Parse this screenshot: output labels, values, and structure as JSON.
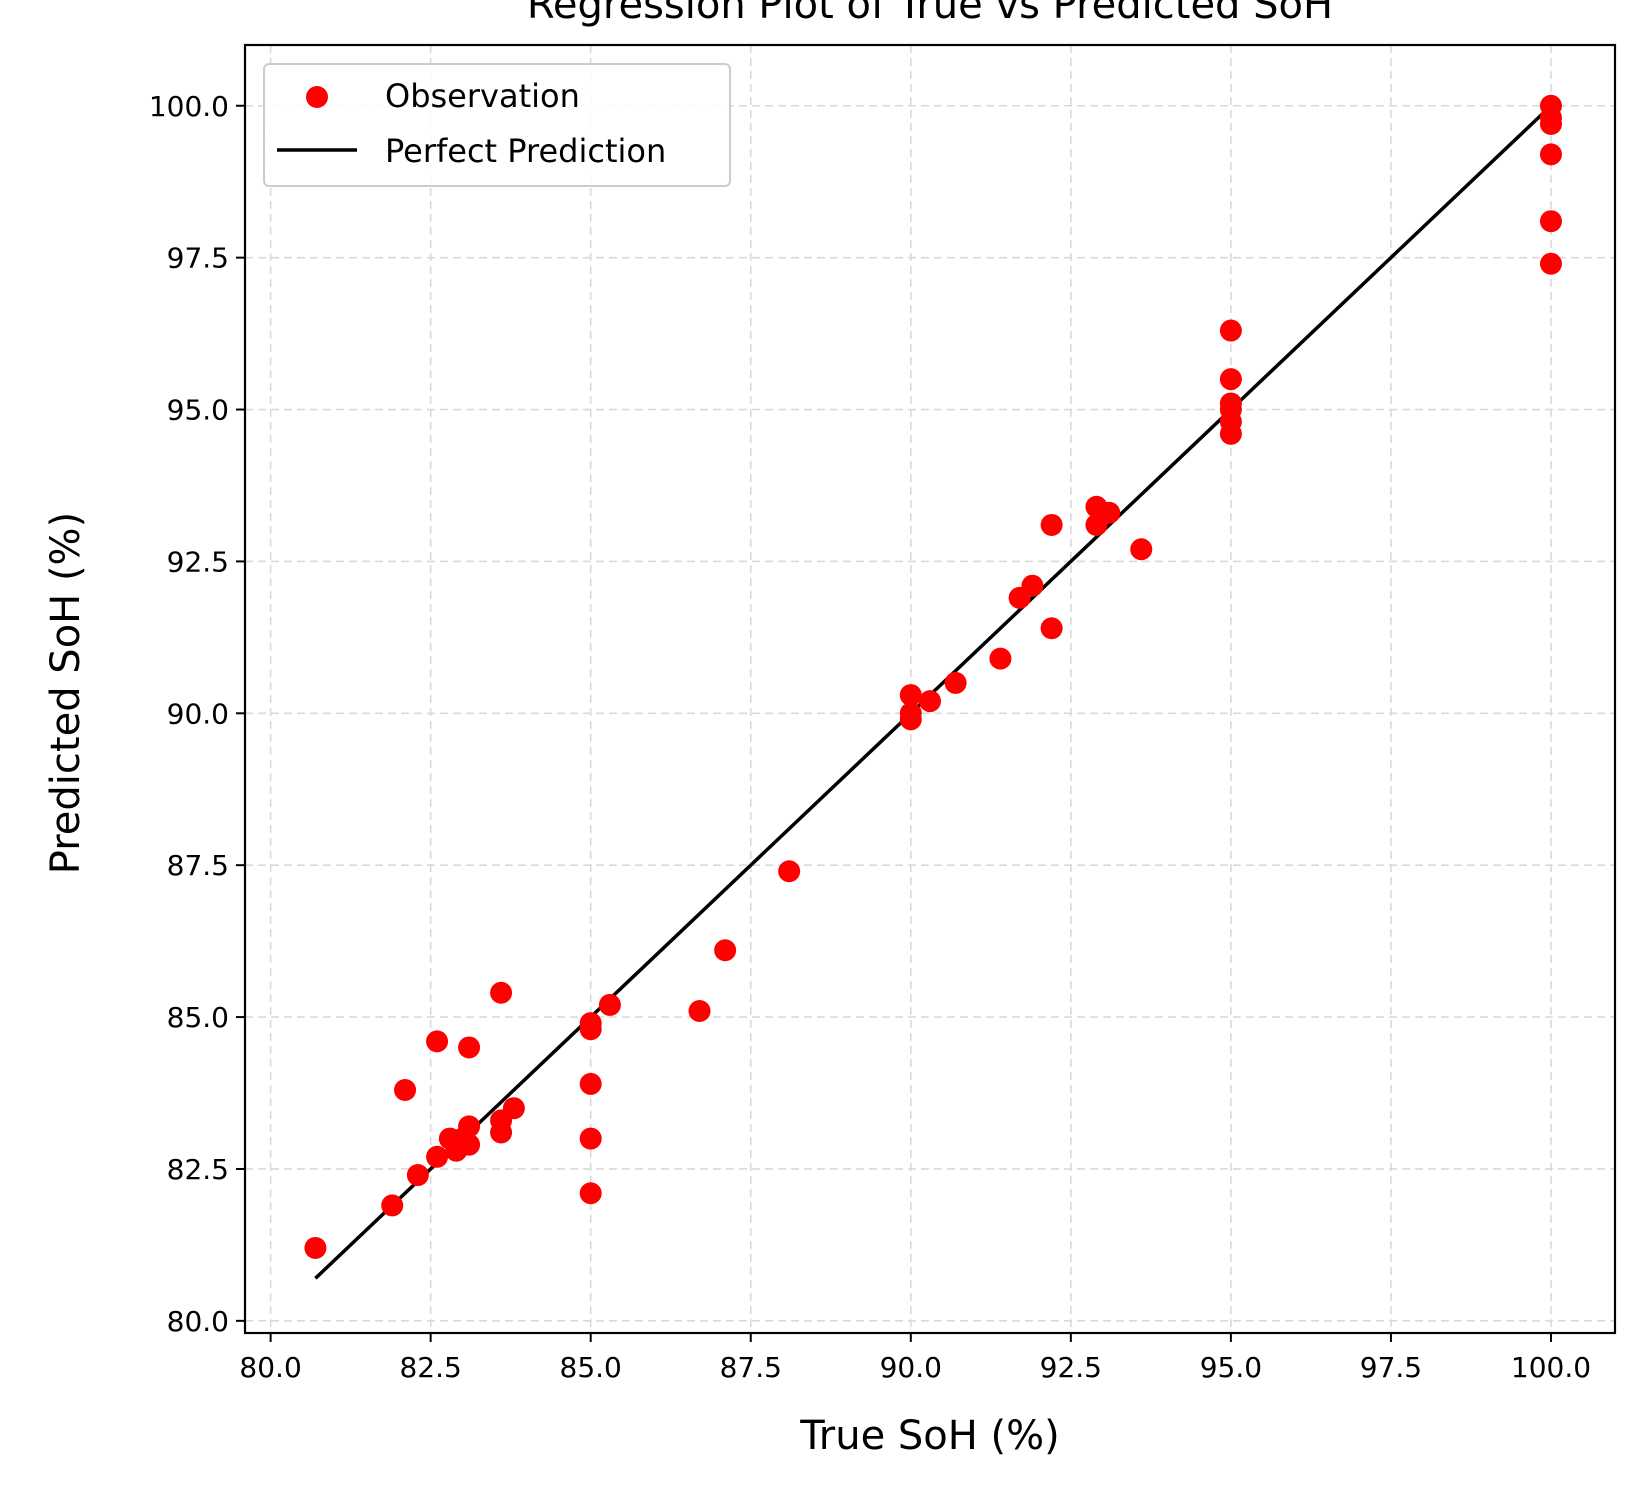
{
  "chart_data": {
    "type": "scatter",
    "title": "Regression Plot of True vs Predicted SoH",
    "xlabel": "True SoH (%)",
    "ylabel": "Predicted SoH (%)",
    "xlim": [
      79.6,
      101.0
    ],
    "ylim": [
      79.8,
      101.0
    ],
    "x_ticks": [
      "80.0",
      "82.5",
      "85.0",
      "87.5",
      "90.0",
      "92.5",
      "95.0",
      "97.5",
      "100.0"
    ],
    "y_ticks": [
      "80.0",
      "82.5",
      "85.0",
      "87.5",
      "90.0",
      "92.5",
      "95.0",
      "97.5",
      "100.0"
    ],
    "grid": true,
    "legend_position": "top-left",
    "colors": {
      "observation": "#ff0000",
      "perfect": "#000000"
    },
    "series": [
      {
        "name": "Observation",
        "marker": "circle",
        "points": [
          [
            80.7,
            81.2
          ],
          [
            81.9,
            81.9
          ],
          [
            82.1,
            83.8
          ],
          [
            82.3,
            82.4
          ],
          [
            82.6,
            82.7
          ],
          [
            82.6,
            84.6
          ],
          [
            82.8,
            83.0
          ],
          [
            82.9,
            82.8
          ],
          [
            83.0,
            83.0
          ],
          [
            83.1,
            84.5
          ],
          [
            83.1,
            82.9
          ],
          [
            83.1,
            83.2
          ],
          [
            83.6,
            83.3
          ],
          [
            83.6,
            83.1
          ],
          [
            83.6,
            85.4
          ],
          [
            83.8,
            83.5
          ],
          [
            85.0,
            84.9
          ],
          [
            85.0,
            84.8
          ],
          [
            85.0,
            83.9
          ],
          [
            85.0,
            83.0
          ],
          [
            85.0,
            82.1
          ],
          [
            85.3,
            85.2
          ],
          [
            86.7,
            85.1
          ],
          [
            87.1,
            86.1
          ],
          [
            88.1,
            87.4
          ],
          [
            90.0,
            90.3
          ],
          [
            90.0,
            90.0
          ],
          [
            90.0,
            89.9
          ],
          [
            90.3,
            90.2
          ],
          [
            90.7,
            90.5
          ],
          [
            91.4,
            90.9
          ],
          [
            91.7,
            91.9
          ],
          [
            91.9,
            92.1
          ],
          [
            92.2,
            93.1
          ],
          [
            92.2,
            91.4
          ],
          [
            92.9,
            93.4
          ],
          [
            92.9,
            93.1
          ],
          [
            93.1,
            93.3
          ],
          [
            93.6,
            92.7
          ],
          [
            95.0,
            96.3
          ],
          [
            95.0,
            95.5
          ],
          [
            95.0,
            95.1
          ],
          [
            95.0,
            95.0
          ],
          [
            95.0,
            94.8
          ],
          [
            95.0,
            94.6
          ],
          [
            100.0,
            100.0
          ],
          [
            100.0,
            99.8
          ],
          [
            100.0,
            99.7
          ],
          [
            100.0,
            99.2
          ],
          [
            100.0,
            98.1
          ],
          [
            100.0,
            97.4
          ]
        ]
      },
      {
        "name": "Perfect Prediction",
        "marker": "line",
        "points": [
          [
            80.7,
            80.7
          ],
          [
            100.0,
            100.0
          ]
        ]
      }
    ]
  }
}
